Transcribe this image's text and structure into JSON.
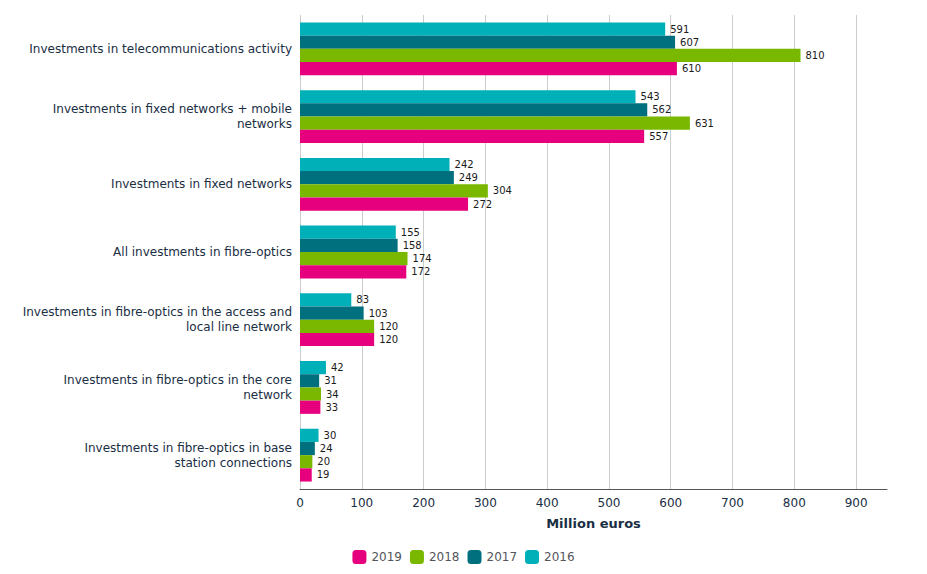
{
  "chart_data": {
    "type": "bar",
    "orientation": "horizontal",
    "categories": [
      "Investments in fibre-optics in base\nstation connections",
      "Investments in fibre-optics in the core\nnetwork",
      "Investments in fibre-optics in the access and\nlocal line network",
      "All investments in fibre-optics",
      "Investments in fixed networks",
      "Investments in fixed networks + mobile\nnetworks",
      "Investments in telecommunications activity"
    ],
    "series": [
      {
        "name": "2019",
        "color": "#e6007e",
        "values": [
          19,
          33,
          120,
          172,
          272,
          557,
          610
        ]
      },
      {
        "name": "2018",
        "color": "#7ab800",
        "values": [
          20,
          34,
          120,
          174,
          304,
          631,
          810
        ]
      },
      {
        "name": "2017",
        "color": "#006f7e",
        "values": [
          24,
          31,
          103,
          158,
          249,
          562,
          607
        ]
      },
      {
        "name": "2016",
        "color": "#00b0b9",
        "values": [
          30,
          42,
          83,
          155,
          242,
          543,
          591
        ]
      }
    ],
    "xlabel": "Million euros",
    "xlim": [
      0,
      950
    ],
    "xticks": [
      0,
      100,
      200,
      300,
      400,
      500,
      600,
      700,
      800,
      900
    ],
    "grid": true,
    "legend": "bottom",
    "data_labels": true
  }
}
